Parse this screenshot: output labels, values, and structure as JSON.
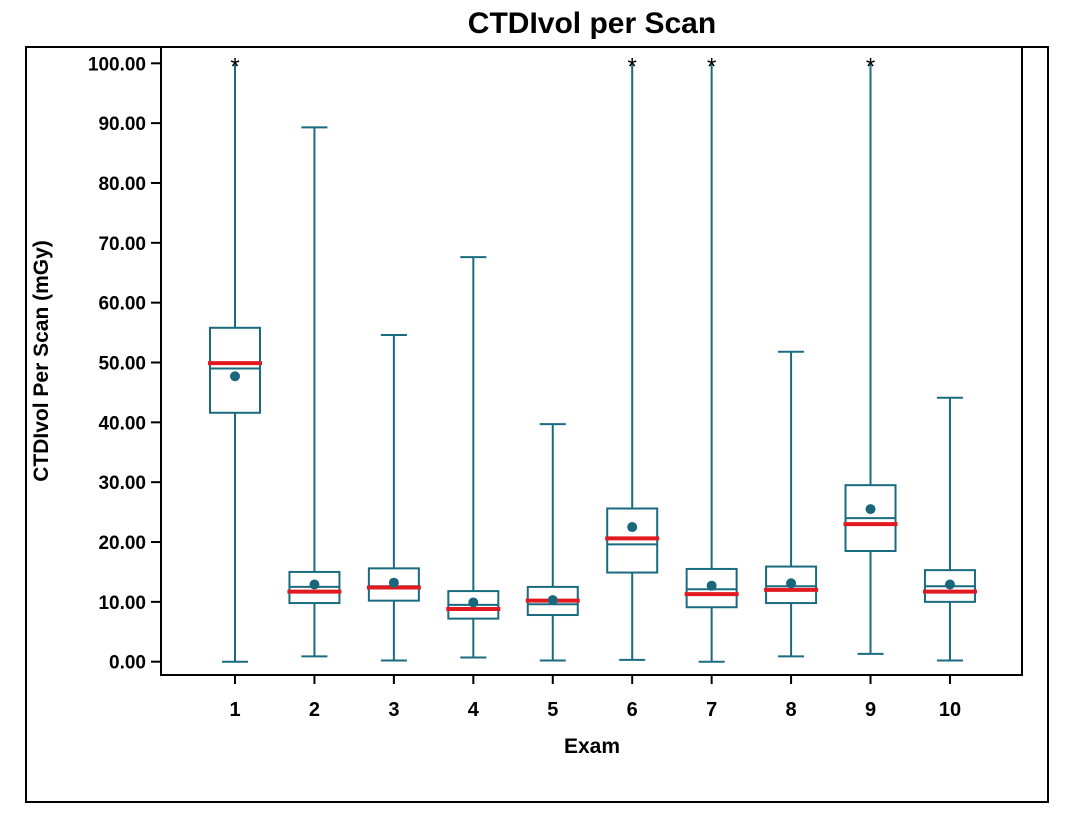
{
  "chart_data": {
    "type": "boxplot",
    "title": "CTDIvol per Scan",
    "xlabel": "Exam",
    "ylabel": "CTDIvol Per Scan (mGy)",
    "ylim": [
      0,
      100
    ],
    "ytick_step": 10,
    "ytick_decimals": 2,
    "ytick_labels": [
      "0.00",
      "10.00",
      "20.00",
      "30.00",
      "40.00",
      "50.00",
      "60.00",
      "70.00",
      "80.00",
      "90.00",
      "100.00"
    ],
    "categories": [
      "1",
      "2",
      "3",
      "4",
      "5",
      "6",
      "7",
      "8",
      "9",
      "10"
    ],
    "grid": false,
    "legend": "none",
    "box_fill": "#ffffff",
    "colors": {
      "box_stroke": "#1A6B80",
      "median_line": "#1A6B80",
      "whisker": "#1A6B80",
      "mean_dot": "#1A677C",
      "red_line": "#E21A1F",
      "asterisk": "#1A6B80",
      "text": "#000000",
      "frame": "#000000"
    },
    "boxes": [
      {
        "exam": "1",
        "whisker_low": 0.0,
        "q1": 41.6,
        "median": 49.0,
        "q3": 55.8,
        "whisker_high": 100.0,
        "mean": 47.7,
        "red_line": 49.9,
        "top_asterisk": true
      },
      {
        "exam": "2",
        "whisker_low": 0.9,
        "q1": 9.8,
        "median": 12.5,
        "q3": 15.0,
        "whisker_high": 89.3,
        "mean": 12.9,
        "red_line": 11.7,
        "top_asterisk": false
      },
      {
        "exam": "3",
        "whisker_low": 0.2,
        "q1": 10.2,
        "median": 12.6,
        "q3": 15.6,
        "whisker_high": 54.6,
        "mean": 13.2,
        "red_line": 12.4,
        "top_asterisk": false
      },
      {
        "exam": "4",
        "whisker_low": 0.7,
        "q1": 7.2,
        "median": 9.5,
        "q3": 11.8,
        "whisker_high": 67.6,
        "mean": 9.9,
        "red_line": 8.8,
        "top_asterisk": false
      },
      {
        "exam": "5",
        "whisker_low": 0.2,
        "q1": 7.8,
        "median": 9.6,
        "q3": 12.5,
        "whisker_high": 39.7,
        "mean": 10.3,
        "red_line": 10.2,
        "top_asterisk": false
      },
      {
        "exam": "6",
        "whisker_low": 0.3,
        "q1": 14.9,
        "median": 19.6,
        "q3": 25.6,
        "whisker_high": 100.0,
        "mean": 22.5,
        "red_line": 20.6,
        "top_asterisk": true
      },
      {
        "exam": "7",
        "whisker_low": 0.0,
        "q1": 9.1,
        "median": 12.1,
        "q3": 15.5,
        "whisker_high": 100.0,
        "mean": 12.7,
        "red_line": 11.3,
        "top_asterisk": true
      },
      {
        "exam": "8",
        "whisker_low": 0.9,
        "q1": 9.8,
        "median": 12.6,
        "q3": 15.9,
        "whisker_high": 51.8,
        "mean": 13.1,
        "red_line": 12.0,
        "top_asterisk": false
      },
      {
        "exam": "9",
        "whisker_low": 1.3,
        "q1": 18.5,
        "median": 24.0,
        "q3": 29.5,
        "whisker_high": 100.0,
        "mean": 25.5,
        "red_line": 23.0,
        "top_asterisk": true
      },
      {
        "exam": "10",
        "whisker_low": 0.2,
        "q1": 10.0,
        "median": 12.6,
        "q3": 15.3,
        "whisker_high": 44.1,
        "mean": 12.9,
        "red_line": 11.7,
        "top_asterisk": false
      }
    ]
  }
}
